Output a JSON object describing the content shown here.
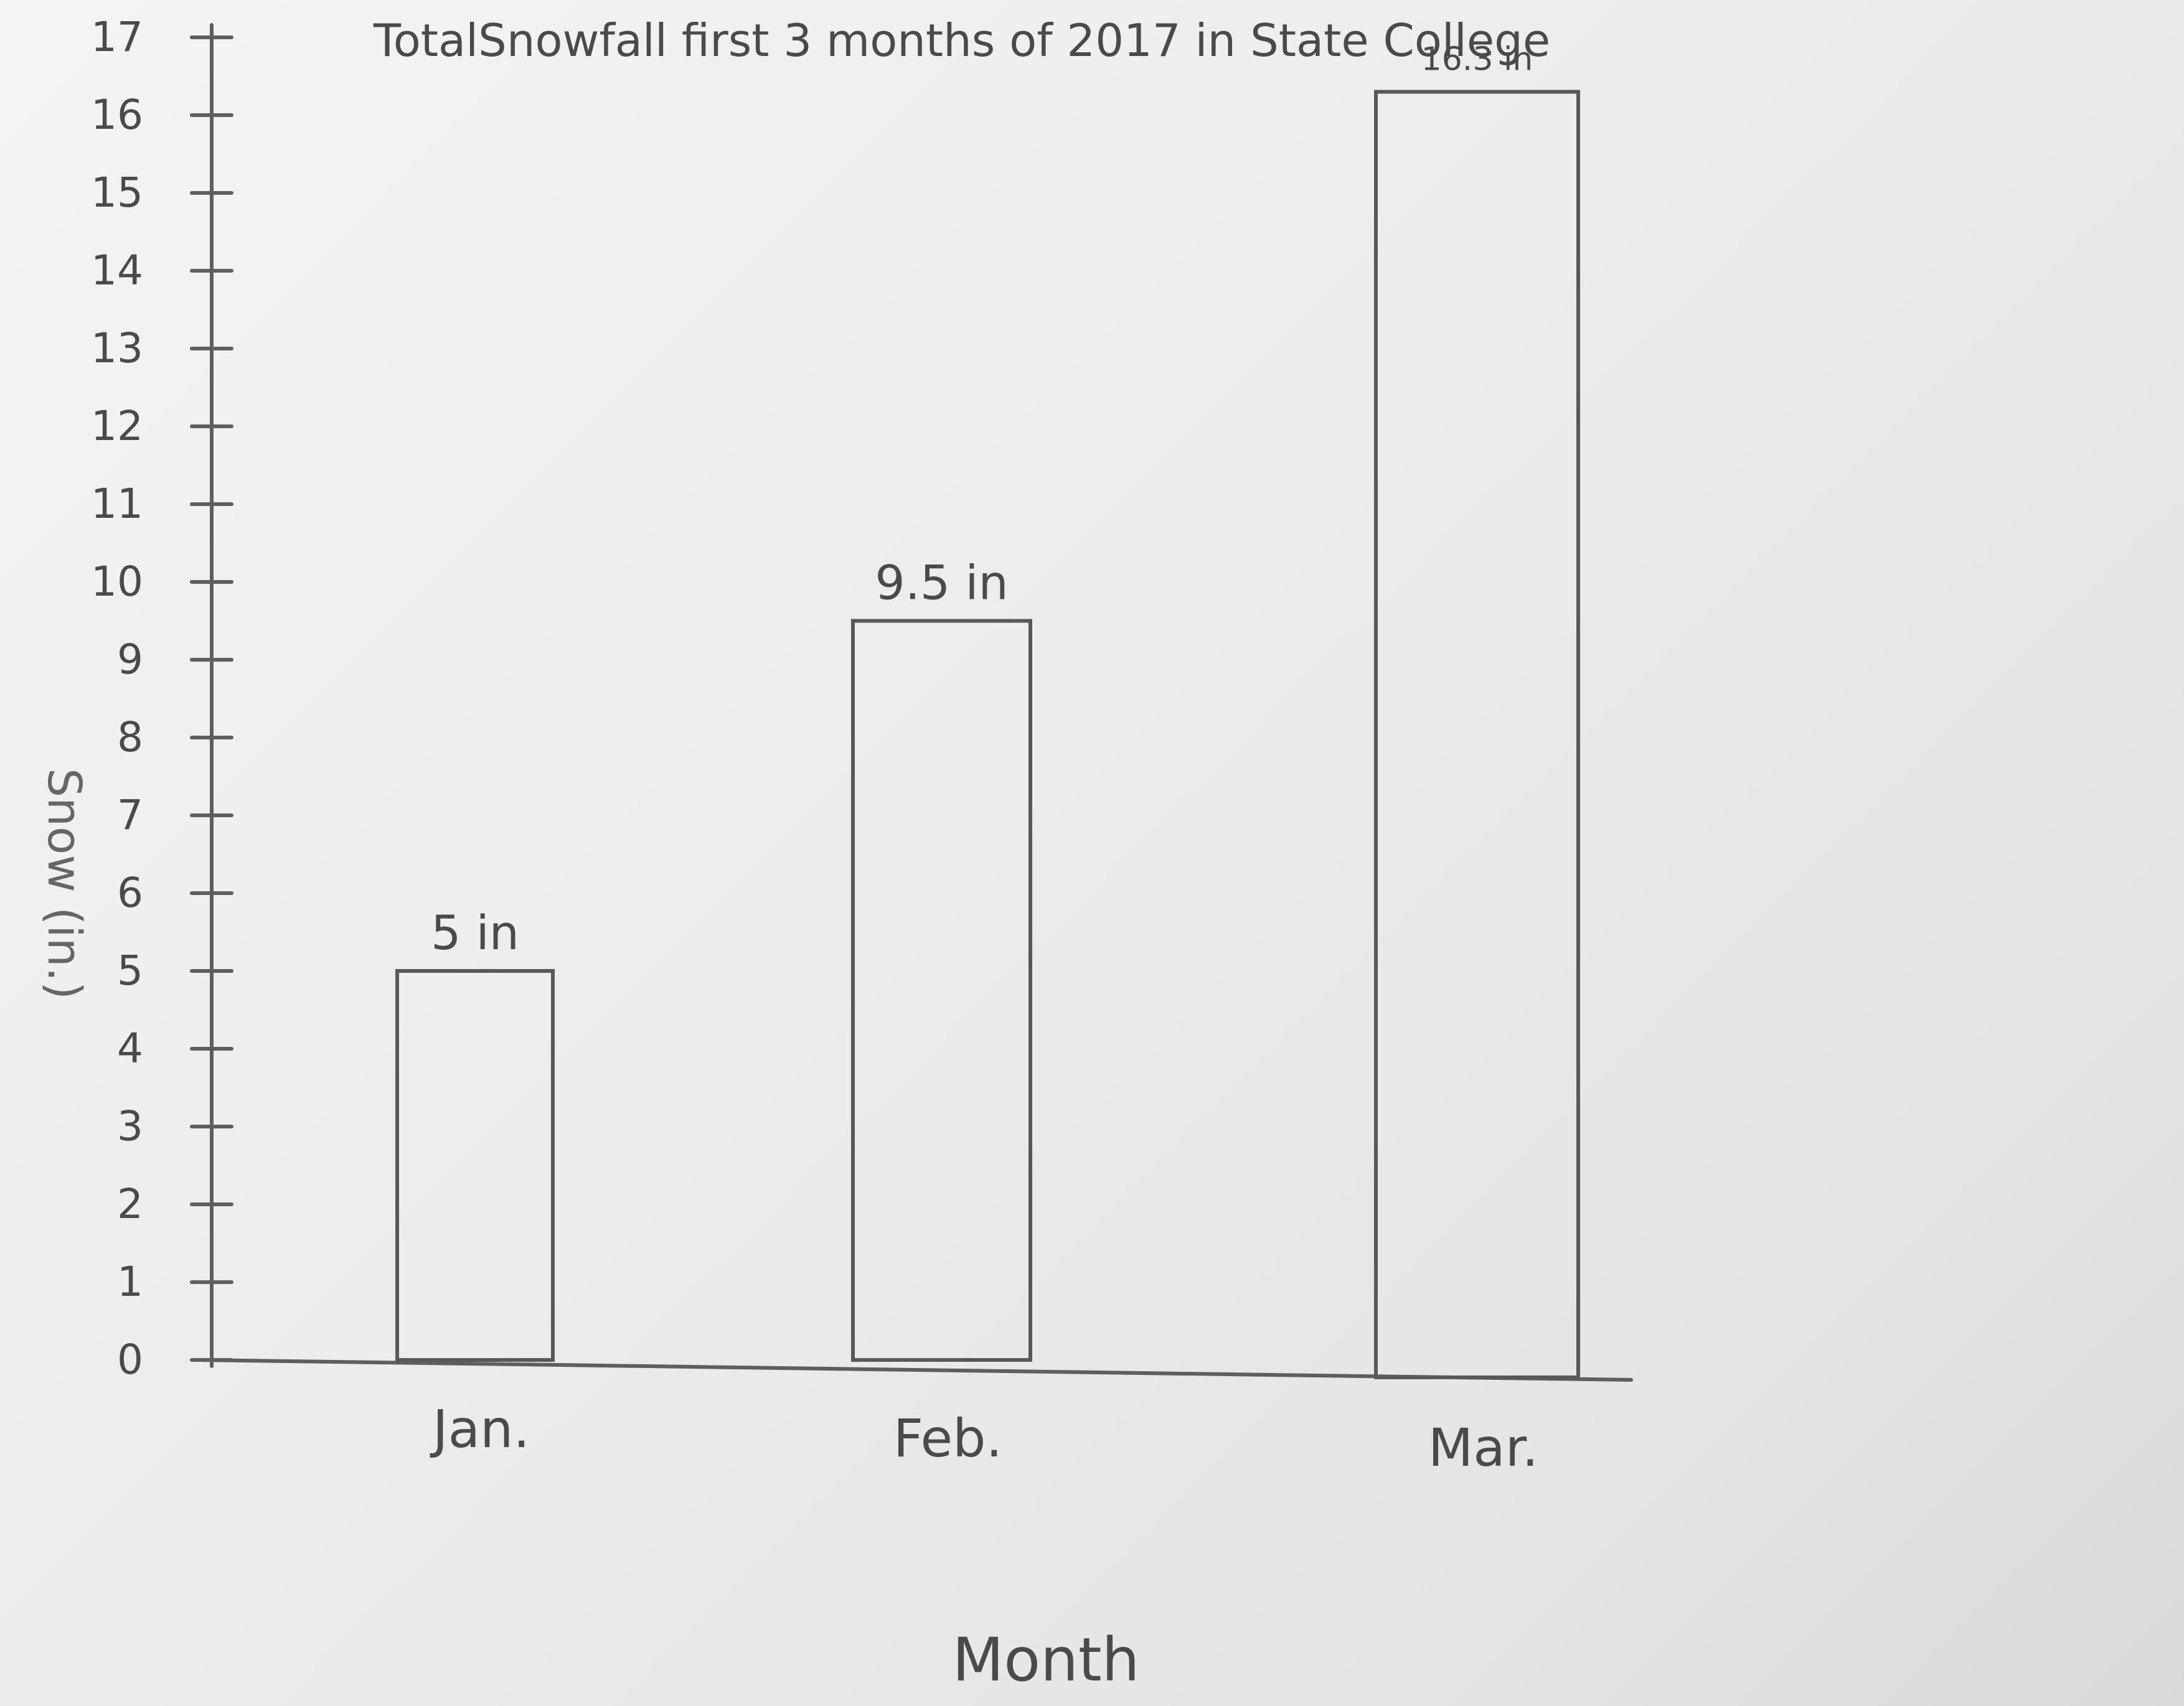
{
  "chart_data": {
    "type": "bar",
    "title": "TotalSnowfall first 3 months of 2017 in State College",
    "xlabel": "Month",
    "ylabel": "Snow (in.)",
    "categories": [
      "Jan.",
      "Feb.",
      "Mar."
    ],
    "values": [
      5,
      9.5,
      16.3
    ],
    "data_labels": [
      "5 in",
      "9.5 in",
      "16.3 in"
    ],
    "ylim": [
      0,
      17
    ],
    "yticks": [
      0,
      1,
      2,
      3,
      4,
      5,
      6,
      7,
      8,
      9,
      10,
      11,
      12,
      13,
      14,
      15,
      16,
      17
    ],
    "ytick_labels": [
      "0",
      "1",
      "2",
      "3",
      "4",
      "5",
      "6",
      "7",
      "8",
      "9",
      "10",
      "11",
      "12",
      "13",
      "14",
      "15",
      "16",
      "17"
    ],
    "grid": false,
    "legend": "none",
    "bar_fill": "none",
    "line_color": "#5e5e5e",
    "paper_color": "#f0f0ee"
  }
}
